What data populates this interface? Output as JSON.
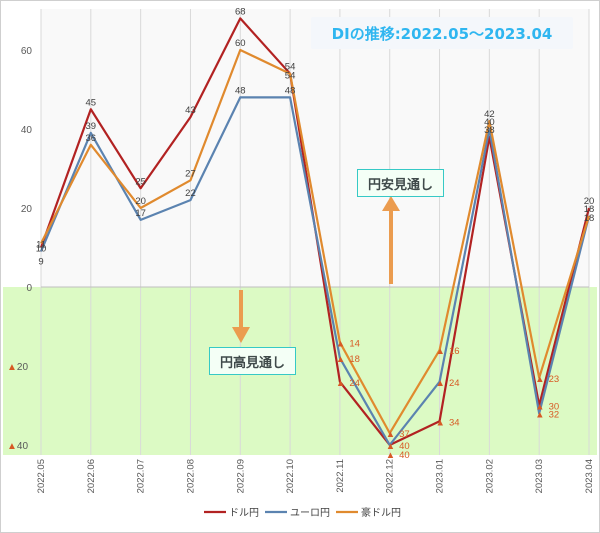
{
  "chart_data": {
    "type": "line",
    "title": "DIの推移:2022.05～2023.04",
    "x": [
      "2022.05",
      "2022.06",
      "2022.07",
      "2022.08",
      "2022.09",
      "2022.10",
      "2022.11",
      "2022.12",
      "2023.01",
      "2023.02",
      "2023.03",
      "2023.04"
    ],
    "ylim": [
      -40,
      68
    ],
    "yticks": [
      -40,
      -20,
      0,
      20,
      40,
      60
    ],
    "ytick_labels": [
      "▲40",
      "▲20",
      "0",
      "20",
      "40",
      "60"
    ],
    "grid": true,
    "legend_position": "bottom",
    "series": [
      {
        "name": "ドル円",
        "color": "#b22222",
        "values": [
          10,
          45,
          25,
          43,
          68,
          54,
          -24,
          -40,
          -34,
          38,
          -30,
          20
        ],
        "labels": [
          "10",
          "45",
          "25",
          "43",
          "68",
          "54",
          "▲24",
          "▲40",
          "▲34",
          "38",
          "▲30",
          "20"
        ]
      },
      {
        "name": "ユーロ円",
        "color": "#5b83b0",
        "values": [
          9,
          39,
          17,
          22,
          48,
          48,
          -18,
          -40,
          -24,
          40,
          -32,
          18
        ],
        "labels": [
          "9",
          "39",
          "17",
          "22",
          "48",
          "48",
          "▲18",
          "▲40",
          "▲24",
          "40",
          "▲32",
          "18"
        ]
      },
      {
        "name": "豪ドル円",
        "color": "#e08a2e",
        "values": [
          11,
          36,
          20,
          27,
          60,
          54,
          -14,
          -37,
          -16,
          42,
          -23,
          18
        ],
        "labels": [
          "11",
          "36",
          "20",
          "27",
          "60",
          "54",
          "▲14",
          "▲37",
          "▲16",
          "42",
          "▲23",
          "18"
        ]
      }
    ],
    "annotations": {
      "yen_weak": "円安見通し",
      "yen_strong": "円高見通し"
    },
    "colors": {
      "positive_area": "#f9f9f9",
      "negative_area": "#dcfac4",
      "arrow": "#eb9c4f",
      "callout_border": "#36c9c6",
      "triangle": "#d75a24"
    }
  }
}
